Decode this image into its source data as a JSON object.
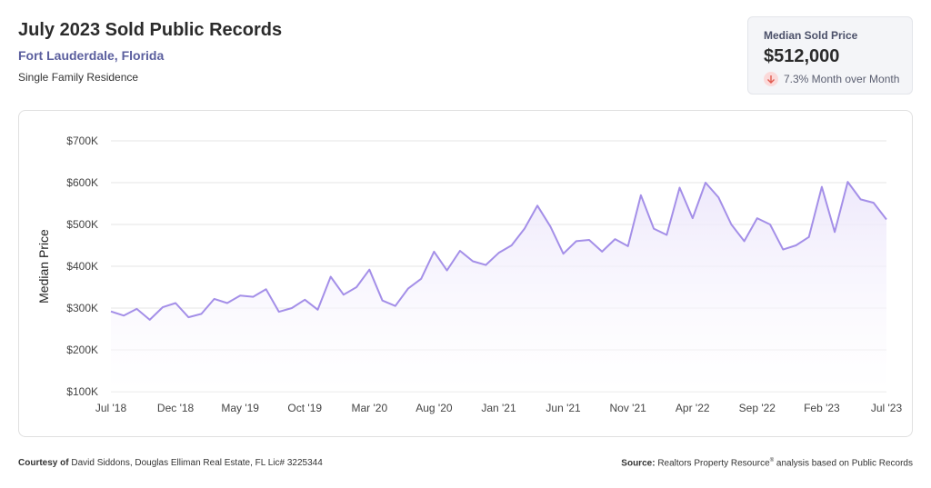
{
  "header": {
    "title": "July 2023 Sold Public Records",
    "location": "Fort Lauderdale, Florida",
    "property_type": "Single Family Residence"
  },
  "stat_card": {
    "label": "Median Sold Price",
    "value": "$512,000",
    "change": "7.3% Month over Month",
    "change_icon": "arrow-down-icon",
    "change_color": "#e05a4f"
  },
  "footer": {
    "courtesy_label": "Courtesy of",
    "courtesy_text": "David Siddons, Douglas Elliman Real Estate, FL Lic# 3225344",
    "source_label": "Source:",
    "source_text_a": "Realtors Property Resource",
    "source_reg": "®",
    "source_text_b": " analysis based on Public Records"
  },
  "chart_data": {
    "type": "area",
    "title": "July 2023 Sold Public Records",
    "xlabel": "",
    "ylabel": "Median Price",
    "ylim": [
      100000,
      700000
    ],
    "y_ticks": [
      100000,
      200000,
      300000,
      400000,
      500000,
      600000,
      700000
    ],
    "y_tick_labels": [
      "$100K",
      "$200K",
      "$300K",
      "$400K",
      "$500K",
      "$600K",
      "$700K"
    ],
    "x_tick_labels": [
      "Jul '18",
      "Dec '18",
      "May '19",
      "Oct '19",
      "Mar '20",
      "Aug '20",
      "Jan '21",
      "Jun '21",
      "Nov '21",
      "Apr '22",
      "Sep '22",
      "Feb '23",
      "Jul '23"
    ],
    "grid": true,
    "line_color": "#a48fe8",
    "categories": [
      "Jul '18",
      "Aug '18",
      "Sep '18",
      "Oct '18",
      "Nov '18",
      "Dec '18",
      "Jan '19",
      "Feb '19",
      "Mar '19",
      "Apr '19",
      "May '19",
      "Jun '19",
      "Jul '19",
      "Aug '19",
      "Sep '19",
      "Oct '19",
      "Nov '19",
      "Dec '19",
      "Jan '20",
      "Feb '20",
      "Mar '20",
      "Apr '20",
      "May '20",
      "Jun '20",
      "Jul '20",
      "Aug '20",
      "Sep '20",
      "Oct '20",
      "Nov '20",
      "Dec '20",
      "Jan '21",
      "Feb '21",
      "Mar '21",
      "Apr '21",
      "May '21",
      "Jun '21",
      "Jul '21",
      "Aug '21",
      "Sep '21",
      "Oct '21",
      "Nov '21",
      "Dec '21",
      "Jan '22",
      "Feb '22",
      "Mar '22",
      "Apr '22",
      "May '22",
      "Jun '22",
      "Jul '22",
      "Aug '22",
      "Sep '22",
      "Oct '22",
      "Nov '22",
      "Dec '22",
      "Jan '23",
      "Feb '23",
      "Mar '23",
      "Apr '23",
      "May '23",
      "Jun '23",
      "Jul '23"
    ],
    "values": [
      292000,
      282000,
      298000,
      272000,
      302000,
      312000,
      278000,
      286000,
      322000,
      312000,
      330000,
      327000,
      345000,
      291000,
      300000,
      320000,
      296000,
      375000,
      332000,
      350000,
      392000,
      318000,
      305000,
      347000,
      370000,
      435000,
      390000,
      437000,
      412000,
      403000,
      432000,
      450000,
      490000,
      545000,
      495000,
      430000,
      460000,
      463000,
      435000,
      465000,
      448000,
      570000,
      490000,
      475000,
      588000,
      515000,
      600000,
      565000,
      500000,
      460000,
      515000,
      500000,
      440000,
      450000,
      470000,
      590000,
      482000,
      602000,
      560000,
      552000,
      512000
    ]
  }
}
